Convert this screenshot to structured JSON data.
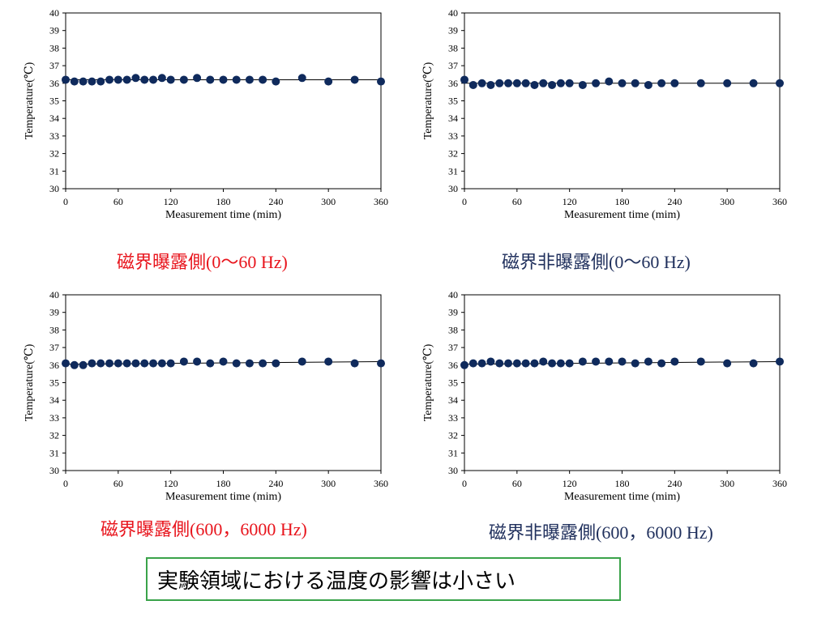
{
  "colors": {
    "marker": "#0f2a5c",
    "trend_line": "#000000",
    "caption_exposed": "#e8141c",
    "caption_unexposed": "#1f2f5c",
    "conclusion_border": "#3aa34a"
  },
  "conclusion": "実験領域における温度の影響は小さい",
  "chart_data": [
    {
      "type": "scatter",
      "caption": "磁界曝露側(0〜60 Hz)",
      "xlabel": "Measurement time (mim)",
      "ylabel": "Temperature(℃)",
      "xlim": [
        0,
        360
      ],
      "ylim": [
        30,
        40
      ],
      "xticks": [
        0,
        60,
        120,
        180,
        240,
        300,
        360
      ],
      "yticks": [
        30,
        31,
        32,
        33,
        34,
        35,
        36,
        37,
        38,
        39,
        40
      ],
      "x": [
        0,
        10,
        20,
        30,
        40,
        50,
        60,
        70,
        80,
        90,
        100,
        110,
        120,
        135,
        150,
        165,
        180,
        195,
        210,
        225,
        240,
        270,
        300,
        330,
        360
      ],
      "y": [
        36.2,
        36.1,
        36.1,
        36.1,
        36.1,
        36.2,
        36.2,
        36.2,
        36.3,
        36.2,
        36.2,
        36.3,
        36.2,
        36.2,
        36.3,
        36.2,
        36.2,
        36.2,
        36.2,
        36.2,
        36.1,
        36.3,
        36.1,
        36.2,
        36.1
      ],
      "trend": [
        [
          0,
          36.2
        ],
        [
          360,
          36.2
        ]
      ]
    },
    {
      "type": "scatter",
      "caption": "磁界非曝露側(0〜60 Hz)",
      "xlabel": "Measurement time (mim)",
      "ylabel": "Temperature(℃)",
      "xlim": [
        0,
        360
      ],
      "ylim": [
        30,
        40
      ],
      "xticks": [
        0,
        60,
        120,
        180,
        240,
        300,
        360
      ],
      "yticks": [
        30,
        31,
        32,
        33,
        34,
        35,
        36,
        37,
        38,
        39,
        40
      ],
      "x": [
        0,
        10,
        20,
        30,
        40,
        50,
        60,
        70,
        80,
        90,
        100,
        110,
        120,
        135,
        150,
        165,
        180,
        195,
        210,
        225,
        240,
        270,
        300,
        330,
        360
      ],
      "y": [
        36.2,
        35.9,
        36.0,
        35.9,
        36.0,
        36.0,
        36.0,
        36.0,
        35.9,
        36.0,
        35.9,
        36.0,
        36.0,
        35.9,
        36.0,
        36.1,
        36.0,
        36.0,
        35.9,
        36.0,
        36.0,
        36.0,
        36.0,
        36.0,
        36.0
      ],
      "trend": [
        [
          0,
          36.0
        ],
        [
          360,
          36.0
        ]
      ]
    },
    {
      "type": "scatter",
      "caption": "磁界曝露側(600，6000 Hz)",
      "xlabel": "Measurement time (mim)",
      "ylabel": "Temperature(℃)",
      "xlim": [
        0,
        360
      ],
      "ylim": [
        30,
        40
      ],
      "xticks": [
        0,
        60,
        120,
        180,
        240,
        300,
        360
      ],
      "yticks": [
        30,
        31,
        32,
        33,
        34,
        35,
        36,
        37,
        38,
        39,
        40
      ],
      "x": [
        0,
        10,
        20,
        30,
        40,
        50,
        60,
        70,
        80,
        90,
        100,
        110,
        120,
        135,
        150,
        165,
        180,
        195,
        210,
        225,
        240,
        270,
        300,
        330,
        360
      ],
      "y": [
        36.1,
        36.0,
        36.0,
        36.1,
        36.1,
        36.1,
        36.1,
        36.1,
        36.1,
        36.1,
        36.1,
        36.1,
        36.1,
        36.2,
        36.2,
        36.1,
        36.2,
        36.1,
        36.1,
        36.1,
        36.1,
        36.2,
        36.2,
        36.1,
        36.1
      ],
      "trend": [
        [
          0,
          36.05
        ],
        [
          360,
          36.2
        ]
      ]
    },
    {
      "type": "scatter",
      "caption": "磁界非曝露側(600，6000 Hz)",
      "xlabel": "Measurement time (mim)",
      "ylabel": "Temperature(℃)",
      "xlim": [
        0,
        360
      ],
      "ylim": [
        30,
        40
      ],
      "xticks": [
        0,
        60,
        120,
        180,
        240,
        300,
        360
      ],
      "yticks": [
        30,
        31,
        32,
        33,
        34,
        35,
        36,
        37,
        38,
        39,
        40
      ],
      "x": [
        0,
        10,
        20,
        30,
        40,
        50,
        60,
        70,
        80,
        90,
        100,
        110,
        120,
        135,
        150,
        165,
        180,
        195,
        210,
        225,
        240,
        270,
        300,
        330,
        360
      ],
      "y": [
        36.0,
        36.1,
        36.1,
        36.2,
        36.1,
        36.1,
        36.1,
        36.1,
        36.1,
        36.2,
        36.1,
        36.1,
        36.1,
        36.2,
        36.2,
        36.2,
        36.2,
        36.1,
        36.2,
        36.1,
        36.2,
        36.2,
        36.1,
        36.1,
        36.2
      ],
      "trend": [
        [
          0,
          36.05
        ],
        [
          360,
          36.2
        ]
      ]
    }
  ]
}
